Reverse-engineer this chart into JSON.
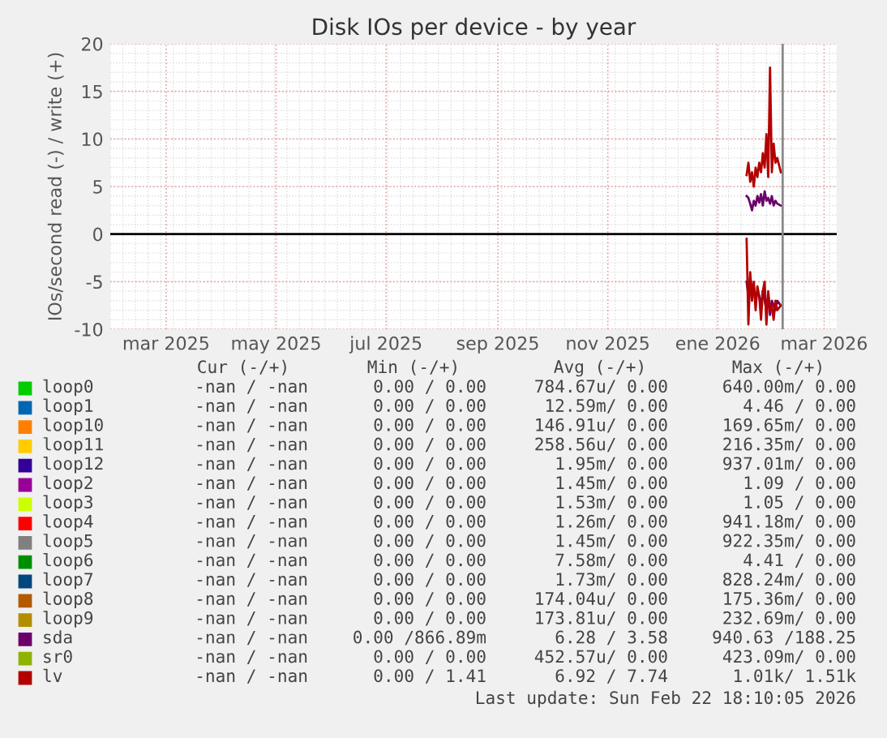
{
  "chart_data": {
    "type": "line",
    "title": "Disk IOs per device - by year",
    "ylabel": "IOs/second read (-) / write (+)",
    "x": [
      "2026-01-17",
      "2026-01-18",
      "2026-01-19",
      "2026-01-20",
      "2026-01-21",
      "2026-01-22",
      "2026-01-23",
      "2026-01-24",
      "2026-01-25",
      "2026-01-26",
      "2026-01-27",
      "2026-01-28",
      "2026-01-29",
      "2026-01-30",
      "2026-01-31",
      "2026-02-01",
      "2026-02-02",
      "2026-02-03",
      "2026-02-05"
    ],
    "series": [
      {
        "name": "loop0",
        "color": "#00cc00",
        "values": [
          null,
          null,
          null,
          null,
          null,
          null,
          null,
          null,
          null,
          null,
          null,
          null,
          null,
          null,
          null,
          null,
          null,
          null,
          null
        ]
      },
      {
        "name": "loop1",
        "color": "#0066b3",
        "values": [
          null,
          null,
          null,
          null,
          null,
          null,
          null,
          null,
          null,
          null,
          null,
          null,
          null,
          null,
          null,
          null,
          null,
          null,
          null
        ]
      },
      {
        "name": "loop10",
        "color": "#ff8000",
        "values": [
          null,
          null,
          null,
          null,
          null,
          null,
          null,
          null,
          null,
          null,
          null,
          null,
          null,
          null,
          null,
          null,
          null,
          null,
          null
        ]
      },
      {
        "name": "loop11",
        "color": "#ffcc00",
        "values": [
          null,
          null,
          null,
          null,
          null,
          null,
          null,
          null,
          null,
          null,
          null,
          null,
          null,
          null,
          null,
          null,
          null,
          null,
          null
        ]
      },
      {
        "name": "loop12",
        "color": "#330099",
        "values": [
          null,
          null,
          null,
          null,
          null,
          null,
          null,
          null,
          null,
          null,
          null,
          null,
          null,
          null,
          null,
          null,
          null,
          null,
          null
        ]
      },
      {
        "name": "loop2",
        "color": "#990099",
        "values": [
          null,
          null,
          null,
          null,
          null,
          null,
          null,
          null,
          null,
          null,
          null,
          null,
          null,
          null,
          null,
          null,
          null,
          null,
          null
        ]
      },
      {
        "name": "loop3",
        "color": "#ccff00",
        "values": [
          null,
          null,
          null,
          null,
          null,
          null,
          null,
          null,
          null,
          null,
          null,
          null,
          null,
          null,
          null,
          null,
          null,
          null,
          null
        ]
      },
      {
        "name": "loop4",
        "color": "#ff0000",
        "values": [
          null,
          null,
          null,
          null,
          null,
          null,
          null,
          null,
          null,
          null,
          null,
          null,
          null,
          null,
          null,
          null,
          null,
          null,
          null
        ]
      },
      {
        "name": "loop5",
        "color": "#808080",
        "values": [
          null,
          null,
          null,
          null,
          null,
          null,
          null,
          null,
          null,
          null,
          null,
          null,
          null,
          null,
          null,
          null,
          null,
          null,
          null
        ]
      },
      {
        "name": "loop6",
        "color": "#008f00",
        "values": [
          null,
          null,
          null,
          null,
          null,
          null,
          null,
          null,
          null,
          null,
          null,
          null,
          null,
          null,
          null,
          null,
          null,
          null,
          null
        ]
      },
      {
        "name": "loop7",
        "color": "#00487d",
        "values": [
          null,
          null,
          null,
          null,
          null,
          null,
          null,
          null,
          null,
          null,
          null,
          null,
          null,
          null,
          null,
          null,
          null,
          null,
          null
        ]
      },
      {
        "name": "loop8",
        "color": "#b35a00",
        "values": [
          null,
          null,
          null,
          null,
          null,
          null,
          null,
          null,
          null,
          null,
          null,
          null,
          null,
          null,
          null,
          null,
          null,
          null,
          null
        ]
      },
      {
        "name": "loop9",
        "color": "#b38f00",
        "values": [
          null,
          null,
          null,
          null,
          null,
          null,
          null,
          null,
          null,
          null,
          null,
          null,
          null,
          null,
          null,
          null,
          null,
          null,
          null
        ]
      },
      {
        "name": "sda",
        "color": "#6b006b",
        "values": [
          4.0,
          3.8,
          3.2,
          2.5,
          3.5,
          3.0,
          4.0,
          3.3,
          4.2,
          3.0,
          4.5,
          3.5,
          3.8,
          3.2,
          4.0,
          3.0,
          3.5,
          3.2,
          3.0
        ]
      },
      {
        "name": "sr0",
        "color": "#8fb300",
        "values": [
          null,
          null,
          null,
          null,
          null,
          null,
          null,
          null,
          null,
          null,
          null,
          null,
          null,
          null,
          null,
          null,
          null,
          null,
          null
        ]
      },
      {
        "name": "lv",
        "color": "#b30000",
        "values": [
          6.2,
          7.5,
          5.5,
          6.5,
          5.0,
          7.0,
          6.0,
          7.5,
          6.5,
          8.5,
          7.0,
          10.5,
          6.0,
          17.5,
          6.5,
          9.5,
          7.5,
          8.0,
          6.5
        ]
      },
      {
        "color": "#6b006b",
        "values": [
          -5.0,
          -6.5,
          -4.5,
          -6.0,
          -5.5,
          -7.0,
          -6.0,
          -6.5,
          -7.5,
          -6.0,
          -7.0,
          -8.0,
          -6.5,
          -8.5,
          -7.0,
          -7.5,
          -8.0,
          -7.0,
          -7.5
        ]
      },
      {
        "color": "#b30000",
        "values": [
          -0.5,
          -9.5,
          -4.0,
          -7.0,
          -5.0,
          -8.0,
          -5.5,
          -6.5,
          -9.0,
          -6.0,
          -5.0,
          -9.5,
          -6.0,
          -8.0,
          -7.5,
          -9.0,
          -7.0,
          -8.0,
          -7.5
        ]
      }
    ],
    "xlim": [
      "2025-01-29",
      "2026-03-08"
    ],
    "xticks": [
      {
        "value": "2025-03-01",
        "label": "mar 2025"
      },
      {
        "value": "2025-05-01",
        "label": "may 2025"
      },
      {
        "value": "2025-07-01",
        "label": "jul 2025"
      },
      {
        "value": "2025-09-01",
        "label": "sep 2025"
      },
      {
        "value": "2025-11-01",
        "label": "nov 2025"
      },
      {
        "value": "2026-01-01",
        "label": "ene 2026"
      },
      {
        "value": "2026-03-01",
        "label": "mar 2026"
      }
    ],
    "ylim": [
      -10,
      20
    ],
    "yticks": [
      -10,
      -5,
      0,
      5,
      10,
      15,
      20
    ],
    "ref_lines": [
      {
        "axis": "y",
        "value": 0,
        "color": "#000000"
      },
      {
        "axis": "x",
        "value": "2026-02-06",
        "color": "#888888"
      }
    ],
    "grid": true,
    "legend": "bottom",
    "marker": "none",
    "line_style": "solid",
    "annotations": [
      "Cur (-/+)",
      "Min (-/+)",
      "Avg (-/+)",
      "Max (-/+)",
      "-nan / -nan",
      "0.00 / 0.00",
      "784.67u/ 0.00",
      "640.00m/ 0.00",
      "-nan / -nan",
      "0.00 / 0.00",
      "12.59m/ 0.00",
      "4.46 / 0.00",
      "-nan / -nan",
      "0.00 / 0.00",
      "146.91u/ 0.00",
      "169.65m/ 0.00",
      "-nan / -nan",
      "0.00 / 0.00",
      "258.56u/ 0.00",
      "216.35m/ 0.00",
      "-nan / -nan",
      "0.00 / 0.00",
      "1.95m/ 0.00",
      "937.01m/ 0.00",
      "-nan / -nan",
      "0.00 / 0.00",
      "1.45m/ 0.00",
      "1.09 / 0.00",
      "-nan / -nan",
      "0.00 / 0.00",
      "1.53m/ 0.00",
      "1.05 / 0.00",
      "-nan / -nan",
      "0.00 / 0.00",
      "1.26m/ 0.00",
      "941.18m/ 0.00",
      "-nan / -nan",
      "0.00 / 0.00",
      "1.45m/ 0.00",
      "922.35m/ 0.00",
      "-nan / -nan",
      "0.00 / 0.00",
      "7.58m/ 0.00",
      "4.41 / 0.00",
      "-nan / -nan",
      "0.00 / 0.00",
      "1.73m/ 0.00",
      "828.24m/ 0.00",
      "-nan / -nan",
      "0.00 / 0.00",
      "174.04u/ 0.00",
      "175.36m/ 0.00",
      "-nan / -nan",
      "0.00 / 0.00",
      "173.81u/ 0.00",
      "232.69m/ 0.00",
      "-nan / -nan",
      "0.00 /866.89m",
      "6.28 / 3.58",
      "940.63 /188.25",
      "-nan / -nan",
      "0.00 / 0.00",
      "452.57u/ 0.00",
      "423.09m/ 0.00",
      "-nan / -nan",
      "0.00 / 1.41",
      "6.92 / 7.74",
      "1.01k/ 1.51k",
      "Last update: Sun Feb 22 18:10:05 2026"
    ]
  }
}
